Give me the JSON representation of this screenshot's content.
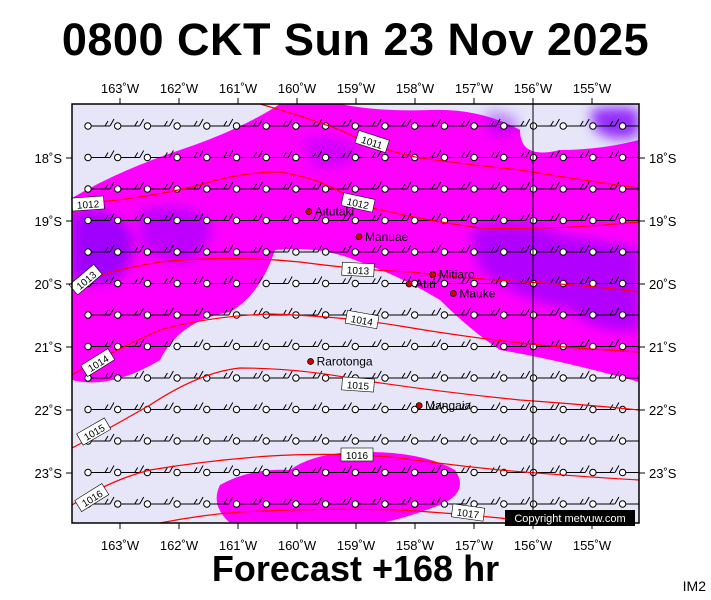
{
  "title": "0800 CKT Sun 23 Nov 2025",
  "footer": "Forecast +168 hr",
  "tag": "IM2",
  "copyright": "Copyright metvuw.com",
  "lon_ticks": [
    "163˚W",
    "162˚W",
    "161˚W",
    "160˚W",
    "159˚W",
    "158˚W",
    "157˚W",
    "156˚W",
    "155˚W"
  ],
  "lat_ticks": [
    "18˚S",
    "19˚S",
    "20˚S",
    "21˚S",
    "22˚S",
    "23˚S"
  ],
  "places": [
    {
      "name": "Aitutaki",
      "lon": -159.8,
      "lat": -18.85
    },
    {
      "name": "Manuae",
      "lon": -158.95,
      "lat": -19.25
    },
    {
      "name": "Mitiaro",
      "lon": -157.7,
      "lat": -19.85
    },
    {
      "name": "Atiu",
      "lon": -158.1,
      "lat": -20.0
    },
    {
      "name": "Mauke",
      "lon": -157.35,
      "lat": -20.15
    },
    {
      "name": "Rarotonga",
      "lon": -159.77,
      "lat": -21.23
    },
    {
      "name": "Mangaia",
      "lon": -157.93,
      "lat": -21.93
    }
  ],
  "isobars": [
    "1011",
    "1012",
    "1012",
    "1013",
    "1013",
    "1014",
    "1014",
    "1015",
    "1015",
    "1016",
    "1016",
    "1017"
  ],
  "colors": {
    "background": "#e6e6f8",
    "rain_light": "#ff00ff",
    "rain_heavy": "#7f00ff",
    "isobar": "#ff0000"
  }
}
